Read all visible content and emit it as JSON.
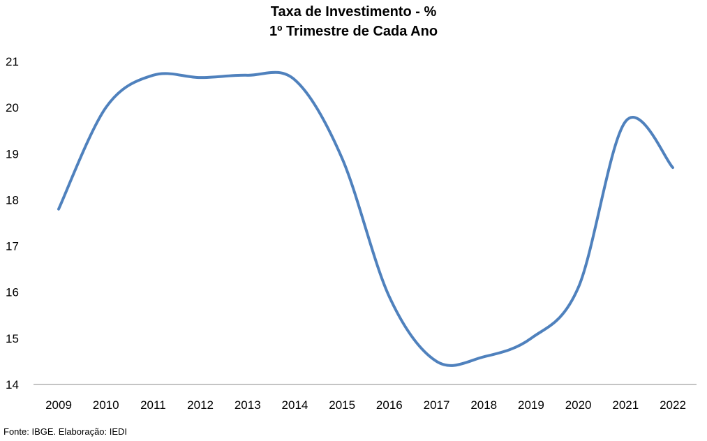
{
  "chart_data": {
    "type": "line",
    "title": "Taxa de Investimento - %",
    "subtitle": "1º Trimestre de Cada Ano",
    "xlabel": "",
    "ylabel": "",
    "categories": [
      "2009",
      "2010",
      "2011",
      "2012",
      "2013",
      "2014",
      "2015",
      "2016",
      "2017",
      "2018",
      "2019",
      "2020",
      "2021",
      "2022"
    ],
    "series": [
      {
        "values": [
          17.8,
          20.0,
          20.7,
          20.65,
          20.7,
          20.6,
          18.9,
          15.9,
          14.5,
          14.6,
          15.0,
          16.1,
          19.7,
          18.7
        ],
        "color": "#4F81BD"
      }
    ],
    "ylim": [
      14,
      21
    ],
    "yticks": [
      14,
      15,
      16,
      17,
      18,
      19,
      20,
      21
    ],
    "grid": false,
    "smooth": true
  },
  "source": "Fonte: IBGE. Elaboração: IEDI"
}
